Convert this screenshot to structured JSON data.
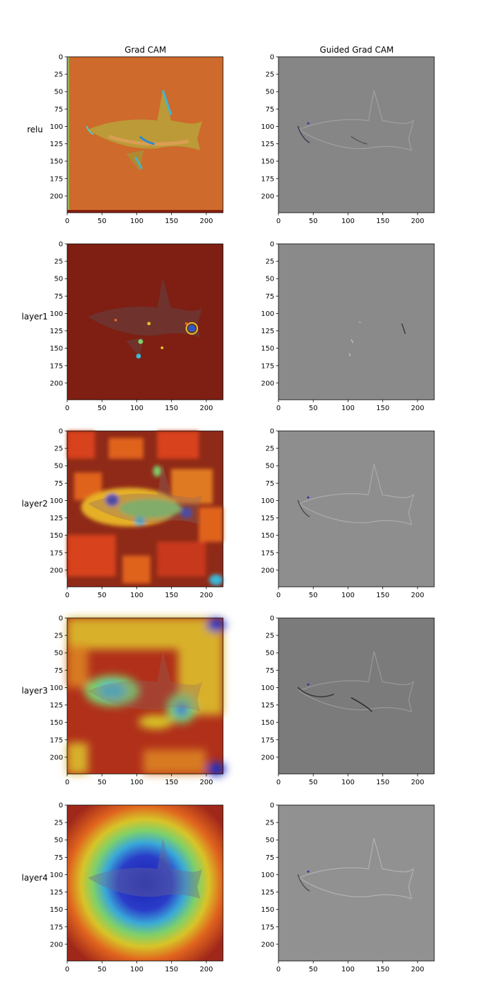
{
  "columns": [
    "Grad CAM",
    "Guided Grad CAM"
  ],
  "rows": [
    "relu",
    "layer1",
    "layer2",
    "layer3",
    "layer4"
  ],
  "colors": {
    "jet_dark_red": "#7f1a10",
    "jet_red": "#c02a14",
    "jet_orange": "#e0641e",
    "jet_yellow": "#d8c428",
    "jet_green": "#7ed06a",
    "jet_cyan": "#3ab8d8",
    "jet_blue": "#2030c0",
    "guided_gray": "#8c8c8c",
    "guided_gray_dark": "#7c7c7c"
  },
  "chart_data": [
    {
      "type": "heatmap",
      "title": "Grad CAM",
      "ylabel": "relu",
      "xlim": [
        0,
        224
      ],
      "ylim": [
        224,
        0
      ],
      "xticks": [
        0,
        50,
        100,
        150,
        200
      ],
      "yticks": [
        0,
        25,
        50,
        75,
        100,
        125,
        150,
        175,
        200
      ],
      "style": "orange_overlay"
    },
    {
      "type": "heatmap",
      "title": "Guided Grad CAM",
      "xlim": [
        0,
        224
      ],
      "ylim": [
        224,
        0
      ],
      "xticks": [
        0,
        50,
        100,
        150,
        200
      ],
      "yticks": [
        0,
        25,
        50,
        75,
        100,
        125,
        150,
        175,
        200
      ],
      "style": "gray_edges"
    },
    {
      "type": "heatmap",
      "ylabel": "layer1",
      "xlim": [
        0,
        224
      ],
      "ylim": [
        224,
        0
      ],
      "xticks": [
        0,
        50,
        100,
        150,
        200
      ],
      "yticks": [
        0,
        25,
        50,
        75,
        100,
        125,
        150,
        175,
        200
      ],
      "style": "dark_red_spots"
    },
    {
      "type": "heatmap",
      "xlim": [
        0,
        224
      ],
      "ylim": [
        224,
        0
      ],
      "xticks": [
        0,
        50,
        100,
        150,
        200
      ],
      "yticks": [
        0,
        25,
        50,
        75,
        100,
        125,
        150,
        175,
        200
      ],
      "style": "gray_edges"
    },
    {
      "type": "heatmap",
      "ylabel": "layer2",
      "xlim": [
        0,
        224
      ],
      "ylim": [
        224,
        0
      ],
      "xticks": [
        0,
        50,
        100,
        150,
        200
      ],
      "yticks": [
        0,
        25,
        50,
        75,
        100,
        125,
        150,
        175,
        200
      ],
      "style": "patchy"
    },
    {
      "type": "heatmap",
      "xlim": [
        0,
        224
      ],
      "ylim": [
        224,
        0
      ],
      "xticks": [
        0,
        50,
        100,
        150,
        200
      ],
      "yticks": [
        0,
        25,
        50,
        75,
        100,
        125,
        150,
        175,
        200
      ],
      "style": "gray_edges"
    },
    {
      "type": "heatmap",
      "ylabel": "layer3",
      "xlim": [
        0,
        224
      ],
      "ylim": [
        224,
        0
      ],
      "xticks": [
        0,
        50,
        100,
        150,
        200
      ],
      "yticks": [
        0,
        25,
        50,
        75,
        100,
        125,
        150,
        175,
        200
      ],
      "style": "blobby"
    },
    {
      "type": "heatmap",
      "xlim": [
        0,
        224
      ],
      "ylim": [
        224,
        0
      ],
      "xticks": [
        0,
        50,
        100,
        150,
        200
      ],
      "yticks": [
        0,
        25,
        50,
        75,
        100,
        125,
        150,
        175,
        200
      ],
      "style": "gray_edges_dark"
    },
    {
      "type": "heatmap",
      "ylabel": "layer4",
      "xlim": [
        0,
        224
      ],
      "ylim": [
        224,
        0
      ],
      "xticks": [
        0,
        50,
        100,
        150,
        200
      ],
      "yticks": [
        0,
        25,
        50,
        75,
        100,
        125,
        150,
        175,
        200
      ],
      "style": "centered_blob"
    },
    {
      "type": "heatmap",
      "xlim": [
        0,
        224
      ],
      "ylim": [
        224,
        0
      ],
      "xticks": [
        0,
        50,
        100,
        150,
        200
      ],
      "yticks": [
        0,
        25,
        50,
        75,
        100,
        125,
        150,
        175,
        200
      ],
      "style": "gray_edges"
    }
  ]
}
